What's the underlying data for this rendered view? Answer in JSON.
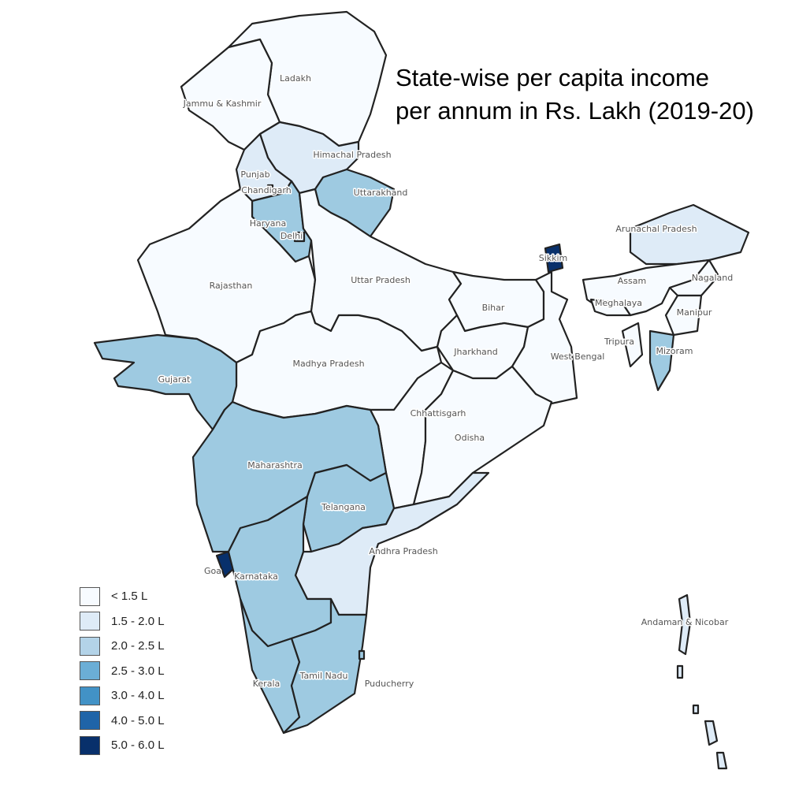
{
  "title_lines": [
    "State-wise per capita income",
    "per annum in Rs. Lakh (2019-20)"
  ],
  "legend": [
    {
      "label": "< 1.5 L",
      "color": "#f7fbff"
    },
    {
      "label": "1.5 - 2.0 L",
      "color": "#deebf7"
    },
    {
      "label": "2.0 - 2.5 L",
      "color": "#b3d3e8"
    },
    {
      "label": "2.5 - 3.0 L",
      "color": "#6baed6"
    },
    {
      "label": "3.0 - 4.0 L",
      "color": "#4292c6"
    },
    {
      "label": "4.0 - 5.0 L",
      "color": "#1f64a8"
    },
    {
      "label": "5.0 - 6.0 L",
      "color": "#08306b"
    }
  ],
  "map_colors": {
    "border": "#222222",
    "label_text": "#555555",
    "mid_fill": "#9ecae1"
  },
  "regions": [
    {
      "name": "Ladakh",
      "bin": 0
    },
    {
      "name": "Jammu & Kashmir",
      "bin": 0
    },
    {
      "name": "Himachal Pradesh",
      "bin": 1
    },
    {
      "name": "Punjab",
      "bin": 1
    },
    {
      "name": "Chandigarh",
      "bin": 1
    },
    {
      "name": "Haryana",
      "bin": 2
    },
    {
      "name": "Delhi",
      "bin": 2
    },
    {
      "name": "Uttarakhand",
      "bin": 2
    },
    {
      "name": "Rajasthan",
      "bin": 0
    },
    {
      "name": "Uttar Pradesh",
      "bin": 0
    },
    {
      "name": "Bihar",
      "bin": 0
    },
    {
      "name": "Sikkim",
      "bin": 6
    },
    {
      "name": "Arunachal Pradesh",
      "bin": 1
    },
    {
      "name": "Assam",
      "bin": 0
    },
    {
      "name": "Nagaland",
      "bin": 0
    },
    {
      "name": "Meghalaya",
      "bin": 0
    },
    {
      "name": "Manipur",
      "bin": 0
    },
    {
      "name": "Tripura",
      "bin": 0
    },
    {
      "name": "Mizoram",
      "bin": 2
    },
    {
      "name": "Jharkhand",
      "bin": 0
    },
    {
      "name": "West Bengal",
      "bin": 0
    },
    {
      "name": "Madhya Pradesh",
      "bin": 0
    },
    {
      "name": "Gujarat",
      "bin": 2
    },
    {
      "name": "Chhattisgarh",
      "bin": 0
    },
    {
      "name": "Odisha",
      "bin": 0
    },
    {
      "name": "Maharashtra",
      "bin": 2
    },
    {
      "name": "Telangana",
      "bin": 2
    },
    {
      "name": "Andhra Pradesh",
      "bin": 1
    },
    {
      "name": "Goa",
      "bin": 6
    },
    {
      "name": "Karnataka",
      "bin": 2
    },
    {
      "name": "Kerala",
      "bin": 2
    },
    {
      "name": "Tamil Nadu",
      "bin": 2
    },
    {
      "name": "Puducherry",
      "bin": 2
    },
    {
      "name": "Andaman & Nicobar",
      "bin": 1
    }
  ]
}
